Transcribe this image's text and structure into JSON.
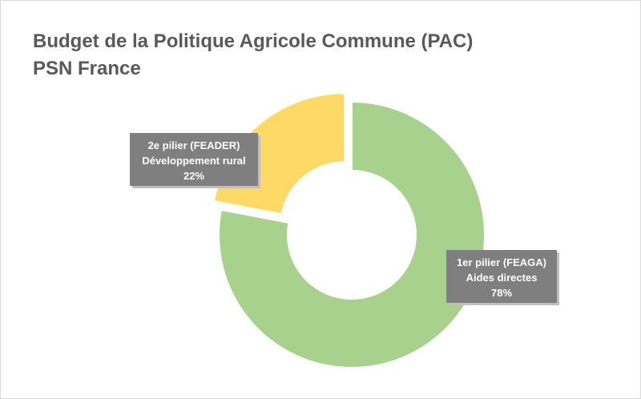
{
  "chart_data": {
    "type": "pie",
    "title": [
      "Budget de la Politique Agricole Commune (PAC)",
      "PSN France"
    ],
    "categories": [
      "1er pilier (FEAGA) Aides directes",
      "2e pilier (FEADER) Développement rural"
    ],
    "values": [
      78,
      22
    ],
    "unit": "%",
    "colors": [
      "#a9d18e",
      "#ffd966"
    ],
    "slices": [
      {
        "lines": [
          "1er pilier (FEAGA)",
          "Aides directes",
          "78%"
        ],
        "value": 78,
        "color": "#a9d18e"
      },
      {
        "lines": [
          "2e pilier (FEADER)",
          "Développement rural",
          "22%"
        ],
        "value": 22,
        "color": "#ffd966"
      }
    ],
    "legend": "none",
    "label_style": "callout-boxes",
    "label_box_color": "#7f7f7f",
    "label_text_color": "#ffffff"
  }
}
